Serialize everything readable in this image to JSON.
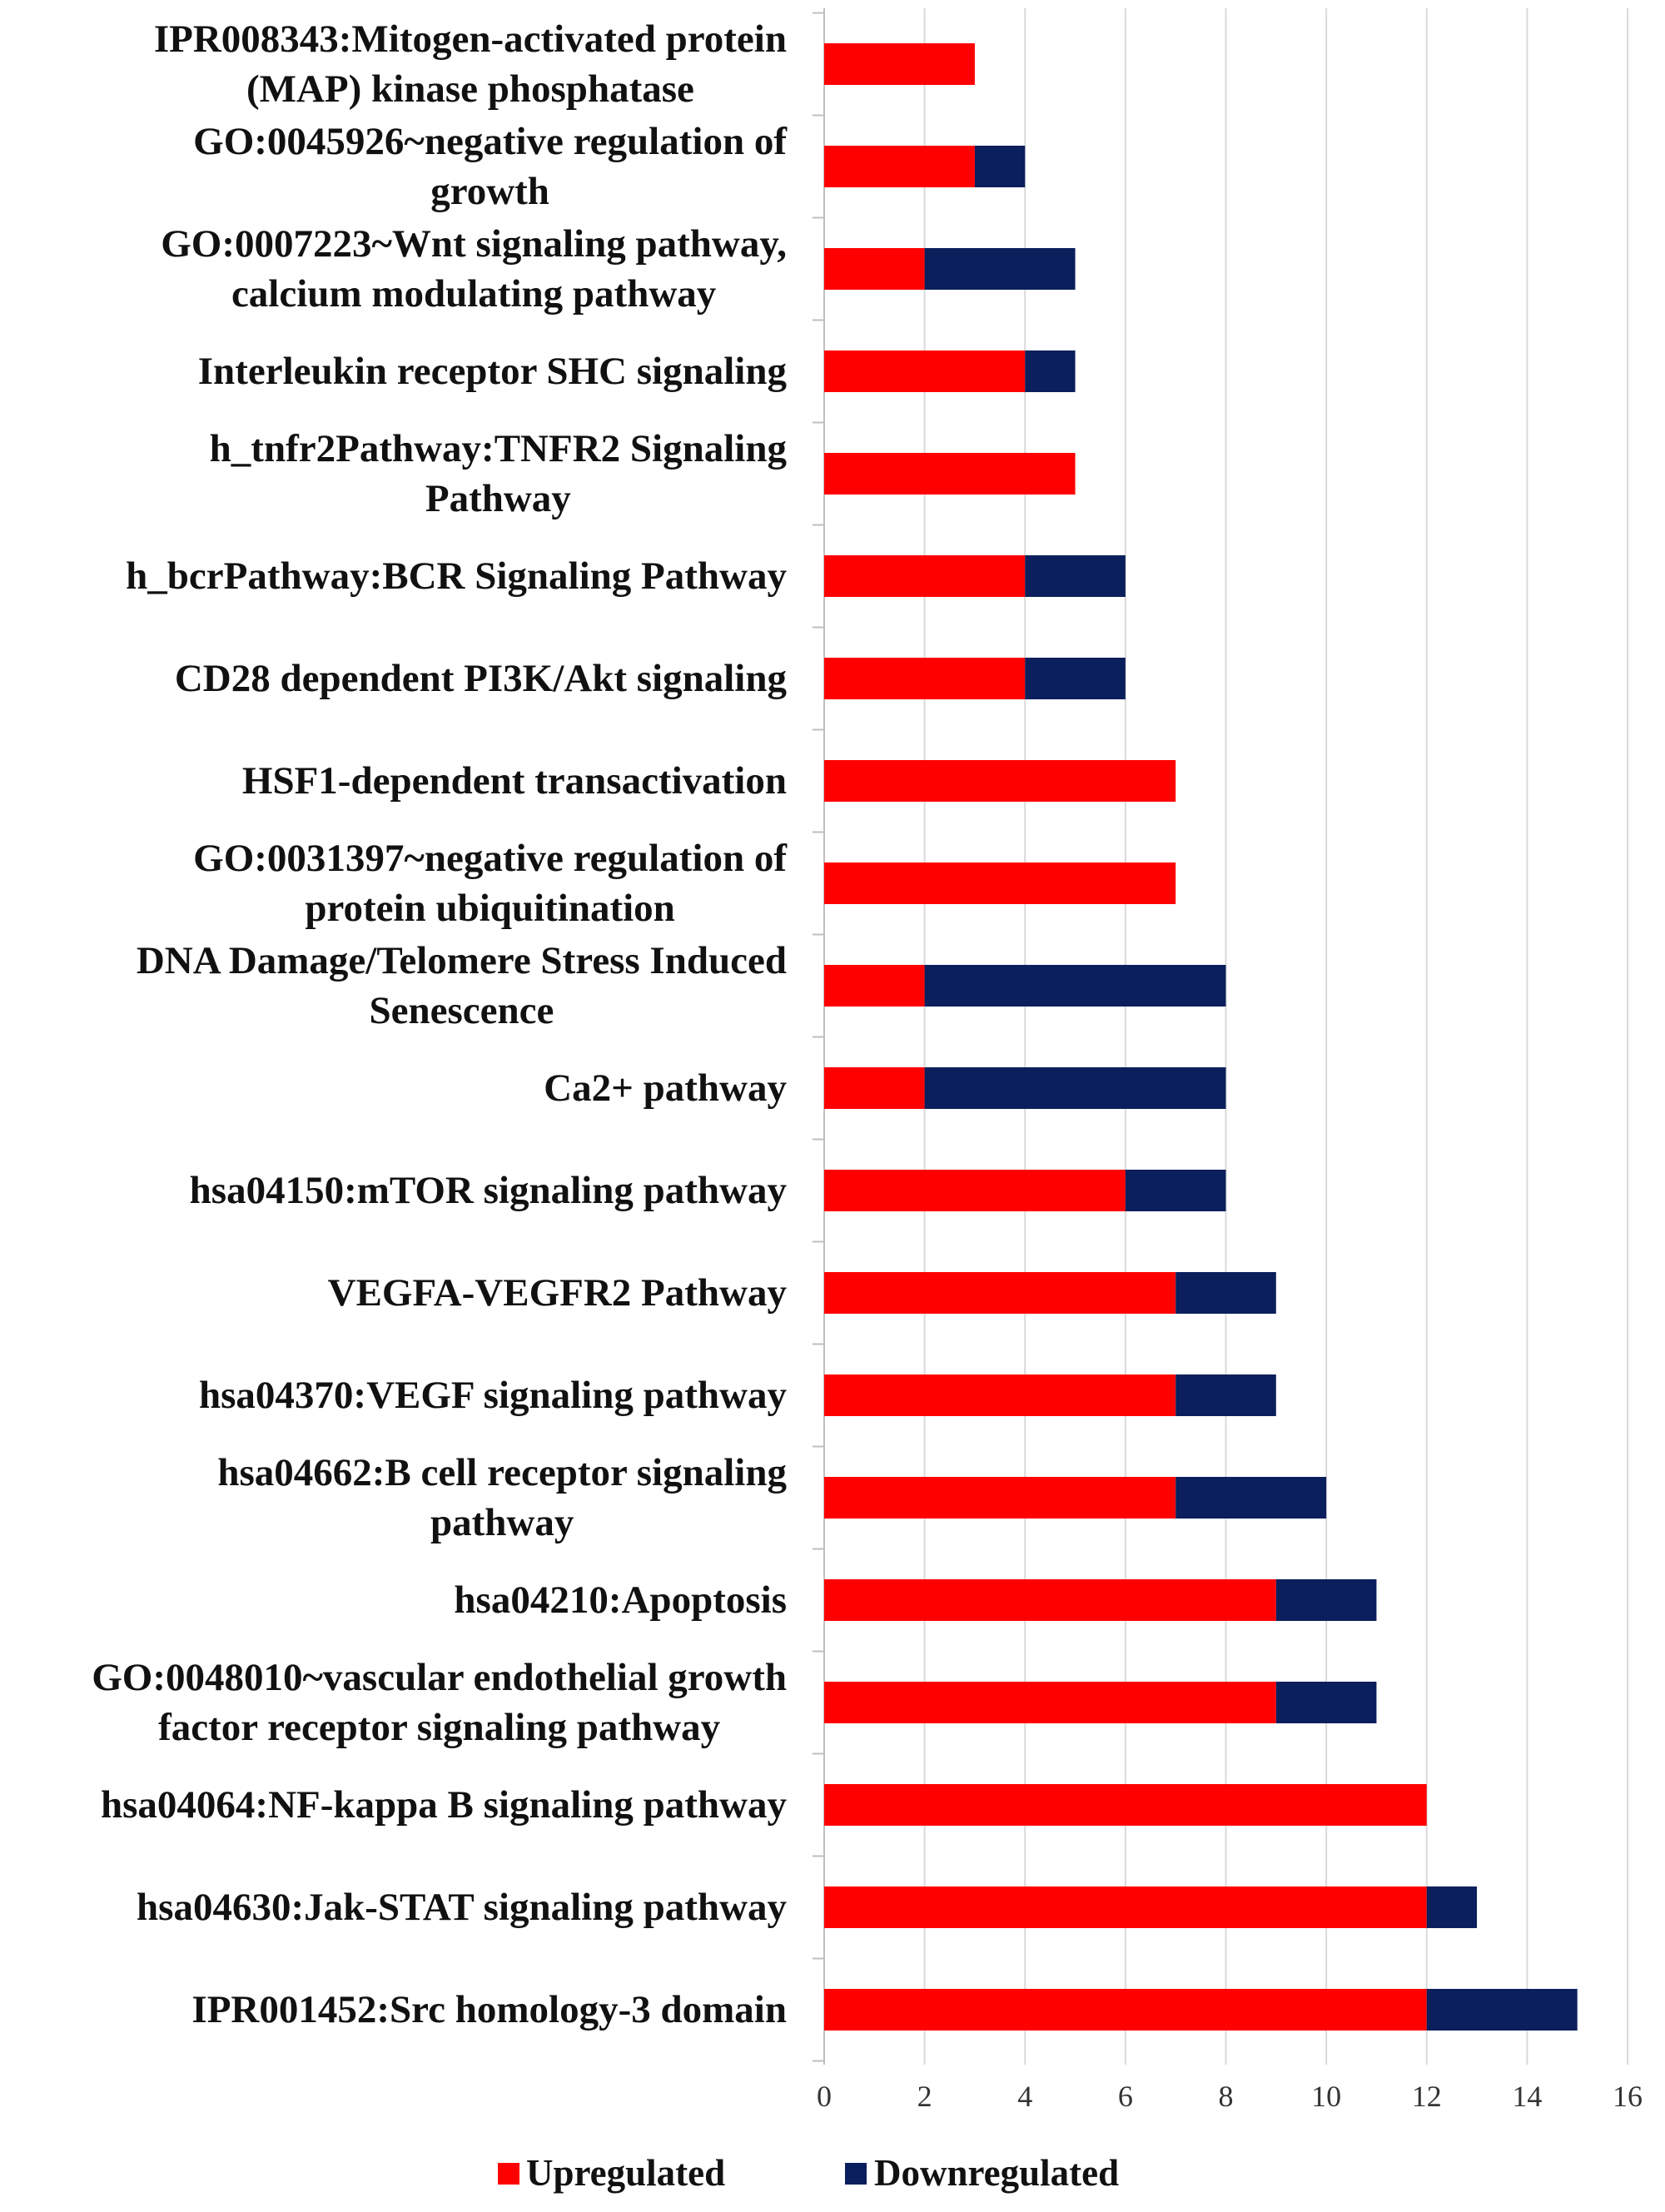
{
  "chart_data": {
    "type": "bar",
    "orientation": "horizontal",
    "stacked": true,
    "categories": [
      [
        "IPR008343:Mitogen-activated protein",
        "(MAP) kinase phosphatase"
      ],
      [
        "GO:0045926~negative regulation of",
        "growth"
      ],
      [
        "GO:0007223~Wnt signaling pathway,",
        "calcium modulating pathway"
      ],
      [
        "Interleukin receptor SHC signaling"
      ],
      [
        "h_tnfr2Pathway:TNFR2 Signaling",
        "Pathway"
      ],
      [
        "h_bcrPathway:BCR Signaling Pathway"
      ],
      [
        "CD28 dependent PI3K/Akt signaling"
      ],
      [
        "HSF1-dependent transactivation"
      ],
      [
        "GO:0031397~negative regulation of",
        "protein ubiquitination"
      ],
      [
        "DNA Damage/Telomere Stress Induced",
        "Senescence"
      ],
      [
        "Ca2+ pathway"
      ],
      [
        "hsa04150:mTOR signaling pathway"
      ],
      [
        "VEGFA-VEGFR2 Pathway"
      ],
      [
        "hsa04370:VEGF signaling pathway"
      ],
      [
        "hsa04662:B cell receptor signaling",
        "pathway"
      ],
      [
        "hsa04210:Apoptosis"
      ],
      [
        "GO:0048010~vascular endothelial growth",
        "factor receptor signaling pathway"
      ],
      [
        "hsa04064:NF-kappa B signaling pathway"
      ],
      [
        "hsa04630:Jak-STAT signaling pathway"
      ],
      [
        "IPR001452:Src homology-3 domain"
      ]
    ],
    "series": [
      {
        "name": "Upregulated",
        "color": "#ff0000",
        "values": [
          3,
          3,
          2,
          4,
          5,
          4,
          4,
          7,
          7,
          2,
          2,
          6,
          7,
          7,
          7,
          9,
          9,
          12,
          12,
          12
        ]
      },
      {
        "name": "Downregulated",
        "color": "#0a1f5c",
        "values": [
          0,
          1,
          3,
          1,
          0,
          2,
          2,
          0,
          0,
          6,
          6,
          2,
          2,
          2,
          3,
          2,
          2,
          0,
          1,
          3
        ]
      }
    ],
    "xlim": [
      0,
      16
    ],
    "xticks": [
      0,
      2,
      4,
      6,
      8,
      10,
      12,
      14,
      16
    ],
    "grid": true,
    "legend": "bottom"
  }
}
